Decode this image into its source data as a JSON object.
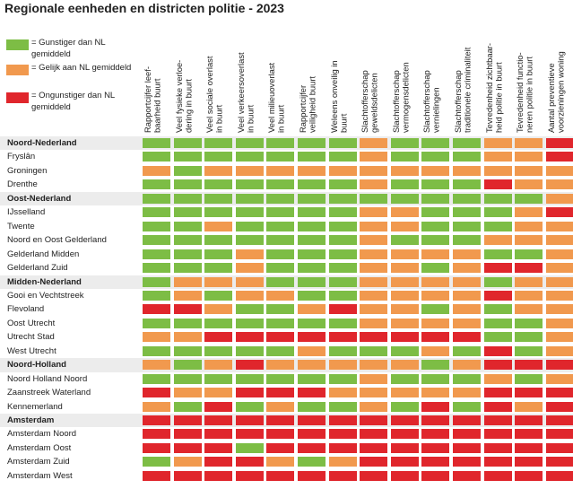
{
  "title": "Regionale eenheden en districten politie - 2023",
  "colors": {
    "green": "#7dbd45",
    "orange": "#f1994e",
    "red": "#e0262c"
  },
  "legend": [
    {
      "key": "G",
      "label": "= Gunstiger dan NL gemiddeld"
    },
    {
      "key": "O",
      "label": "= Gelijk aan NL gemiddeld"
    },
    {
      "key": "R",
      "label": "= Ongunstiger dan NL gemiddeld"
    }
  ],
  "chart_data": {
    "type": "heatmap",
    "title": "Regionale eenheden en districten politie - 2023",
    "columns": [
      "Rapportcijfer leef-\nbaarheid buurt",
      "Veel fysieke verloe-\ndering in buurt",
      "Veel sociale overlast\nin buurt",
      "Veel verkeersoverlast\nin buurt",
      "Veel milieuoverlast\nin buurt",
      "Rapportcijfer\nveiligheid buurt",
      "Weleens onveilig in\nbuurt",
      "Slachtofferschap\ngeweldsdelicten",
      "Slachtofferschap\nvermogensdelicten",
      "Slachtofferschap\nvernielingen",
      "Slachtofferschap\ntraditionele criminaliteit",
      "Tevredenheid zichtbaar-\nheid politie in buurt",
      "Tevredenheid functio-\nneren politie in buurt",
      "Aantal preventieve\nvoorzieningen woning"
    ],
    "legend": {
      "G": "Gunstiger dan NL gemiddeld",
      "O": "Gelijk aan NL gemiddeld",
      "R": "Ongunstiger dan NL gemiddeld"
    },
    "rows": [
      {
        "label": "Noord-Nederland",
        "bold": true,
        "values": [
          "G",
          "G",
          "G",
          "G",
          "G",
          "G",
          "G",
          "O",
          "G",
          "G",
          "G",
          "O",
          "O",
          "R"
        ]
      },
      {
        "label": "Fryslân",
        "bold": false,
        "values": [
          "G",
          "G",
          "G",
          "G",
          "G",
          "G",
          "G",
          "O",
          "G",
          "G",
          "G",
          "O",
          "O",
          "R"
        ]
      },
      {
        "label": "Groningen",
        "bold": false,
        "values": [
          "O",
          "G",
          "O",
          "O",
          "O",
          "O",
          "O",
          "O",
          "O",
          "O",
          "O",
          "O",
          "O",
          "O"
        ]
      },
      {
        "label": "Drenthe",
        "bold": false,
        "values": [
          "G",
          "G",
          "G",
          "G",
          "G",
          "G",
          "G",
          "O",
          "G",
          "G",
          "G",
          "R",
          "O",
          "O"
        ]
      },
      {
        "label": "Oost-Nederland",
        "bold": true,
        "values": [
          "G",
          "G",
          "G",
          "G",
          "G",
          "G",
          "G",
          "G",
          "G",
          "G",
          "G",
          "G",
          "G",
          "O"
        ]
      },
      {
        "label": "IJsselland",
        "bold": false,
        "values": [
          "G",
          "G",
          "G",
          "G",
          "G",
          "G",
          "G",
          "O",
          "O",
          "G",
          "G",
          "G",
          "O",
          "R"
        ]
      },
      {
        "label": "Twente",
        "bold": false,
        "values": [
          "G",
          "G",
          "O",
          "G",
          "G",
          "G",
          "G",
          "O",
          "O",
          "G",
          "G",
          "G",
          "O",
          "O"
        ]
      },
      {
        "label": "Noord en Oost Gelderland",
        "bold": false,
        "values": [
          "G",
          "G",
          "G",
          "G",
          "G",
          "G",
          "G",
          "O",
          "G",
          "G",
          "G",
          "O",
          "O",
          "O"
        ]
      },
      {
        "label": "Gelderland Midden",
        "bold": false,
        "values": [
          "G",
          "G",
          "G",
          "O",
          "G",
          "G",
          "G",
          "O",
          "O",
          "O",
          "O",
          "G",
          "G",
          "O"
        ]
      },
      {
        "label": "Gelderland Zuid",
        "bold": false,
        "values": [
          "G",
          "G",
          "G",
          "O",
          "G",
          "G",
          "G",
          "O",
          "O",
          "G",
          "O",
          "R",
          "R",
          "O"
        ]
      },
      {
        "label": "Midden-Nederland",
        "bold": true,
        "values": [
          "G",
          "O",
          "O",
          "O",
          "G",
          "G",
          "G",
          "O",
          "O",
          "O",
          "O",
          "G",
          "O",
          "O"
        ]
      },
      {
        "label": "Gooi en Vechtstreek",
        "bold": false,
        "values": [
          "G",
          "O",
          "G",
          "O",
          "O",
          "G",
          "G",
          "O",
          "O",
          "O",
          "O",
          "R",
          "O",
          "O"
        ]
      },
      {
        "label": "Flevoland",
        "bold": false,
        "values": [
          "R",
          "R",
          "O",
          "G",
          "G",
          "O",
          "R",
          "O",
          "O",
          "G",
          "O",
          "G",
          "O",
          "O"
        ]
      },
      {
        "label": "Oost Utrecht",
        "bold": false,
        "values": [
          "G",
          "G",
          "G",
          "G",
          "G",
          "G",
          "G",
          "O",
          "O",
          "O",
          "O",
          "G",
          "G",
          "O"
        ]
      },
      {
        "label": "Utrecht Stad",
        "bold": false,
        "values": [
          "O",
          "O",
          "R",
          "R",
          "R",
          "R",
          "R",
          "R",
          "R",
          "R",
          "R",
          "G",
          "G",
          "O"
        ]
      },
      {
        "label": "West Utrecht",
        "bold": false,
        "values": [
          "G",
          "G",
          "G",
          "G",
          "G",
          "O",
          "G",
          "G",
          "G",
          "O",
          "G",
          "R",
          "G",
          "O"
        ]
      },
      {
        "label": "Noord-Holland",
        "bold": true,
        "values": [
          "O",
          "G",
          "O",
          "R",
          "O",
          "O",
          "O",
          "O",
          "O",
          "G",
          "O",
          "R",
          "R",
          "R"
        ]
      },
      {
        "label": "Noord Holland Noord",
        "bold": false,
        "values": [
          "G",
          "G",
          "G",
          "G",
          "G",
          "G",
          "G",
          "O",
          "G",
          "G",
          "G",
          "O",
          "G",
          "O"
        ]
      },
      {
        "label": "Zaanstreek Waterland",
        "bold": false,
        "values": [
          "R",
          "O",
          "O",
          "R",
          "R",
          "R",
          "O",
          "O",
          "O",
          "O",
          "O",
          "R",
          "R",
          "R"
        ]
      },
      {
        "label": "Kennemerland",
        "bold": false,
        "values": [
          "O",
          "G",
          "R",
          "G",
          "O",
          "G",
          "G",
          "O",
          "G",
          "R",
          "G",
          "R",
          "O",
          "R"
        ]
      },
      {
        "label": "Amsterdam",
        "bold": true,
        "values": [
          "R",
          "R",
          "R",
          "R",
          "R",
          "R",
          "R",
          "R",
          "R",
          "R",
          "R",
          "R",
          "R",
          "R"
        ]
      },
      {
        "label": "Amsterdam Noord",
        "bold": false,
        "values": [
          "R",
          "R",
          "R",
          "R",
          "R",
          "R",
          "R",
          "R",
          "R",
          "R",
          "R",
          "R",
          "R",
          "R"
        ]
      },
      {
        "label": "Amsterdam Oost",
        "bold": false,
        "values": [
          "R",
          "R",
          "R",
          "G",
          "R",
          "R",
          "R",
          "R",
          "R",
          "R",
          "R",
          "R",
          "R",
          "R"
        ]
      },
      {
        "label": "Amsterdam Zuid",
        "bold": false,
        "values": [
          "G",
          "O",
          "R",
          "R",
          "O",
          "G",
          "O",
          "R",
          "R",
          "R",
          "R",
          "R",
          "R",
          "R"
        ]
      },
      {
        "label": "Amsterdam West",
        "bold": false,
        "values": [
          "R",
          "R",
          "R",
          "R",
          "R",
          "R",
          "R",
          "R",
          "R",
          "R",
          "R",
          "R",
          "R",
          "R"
        ]
      }
    ]
  }
}
